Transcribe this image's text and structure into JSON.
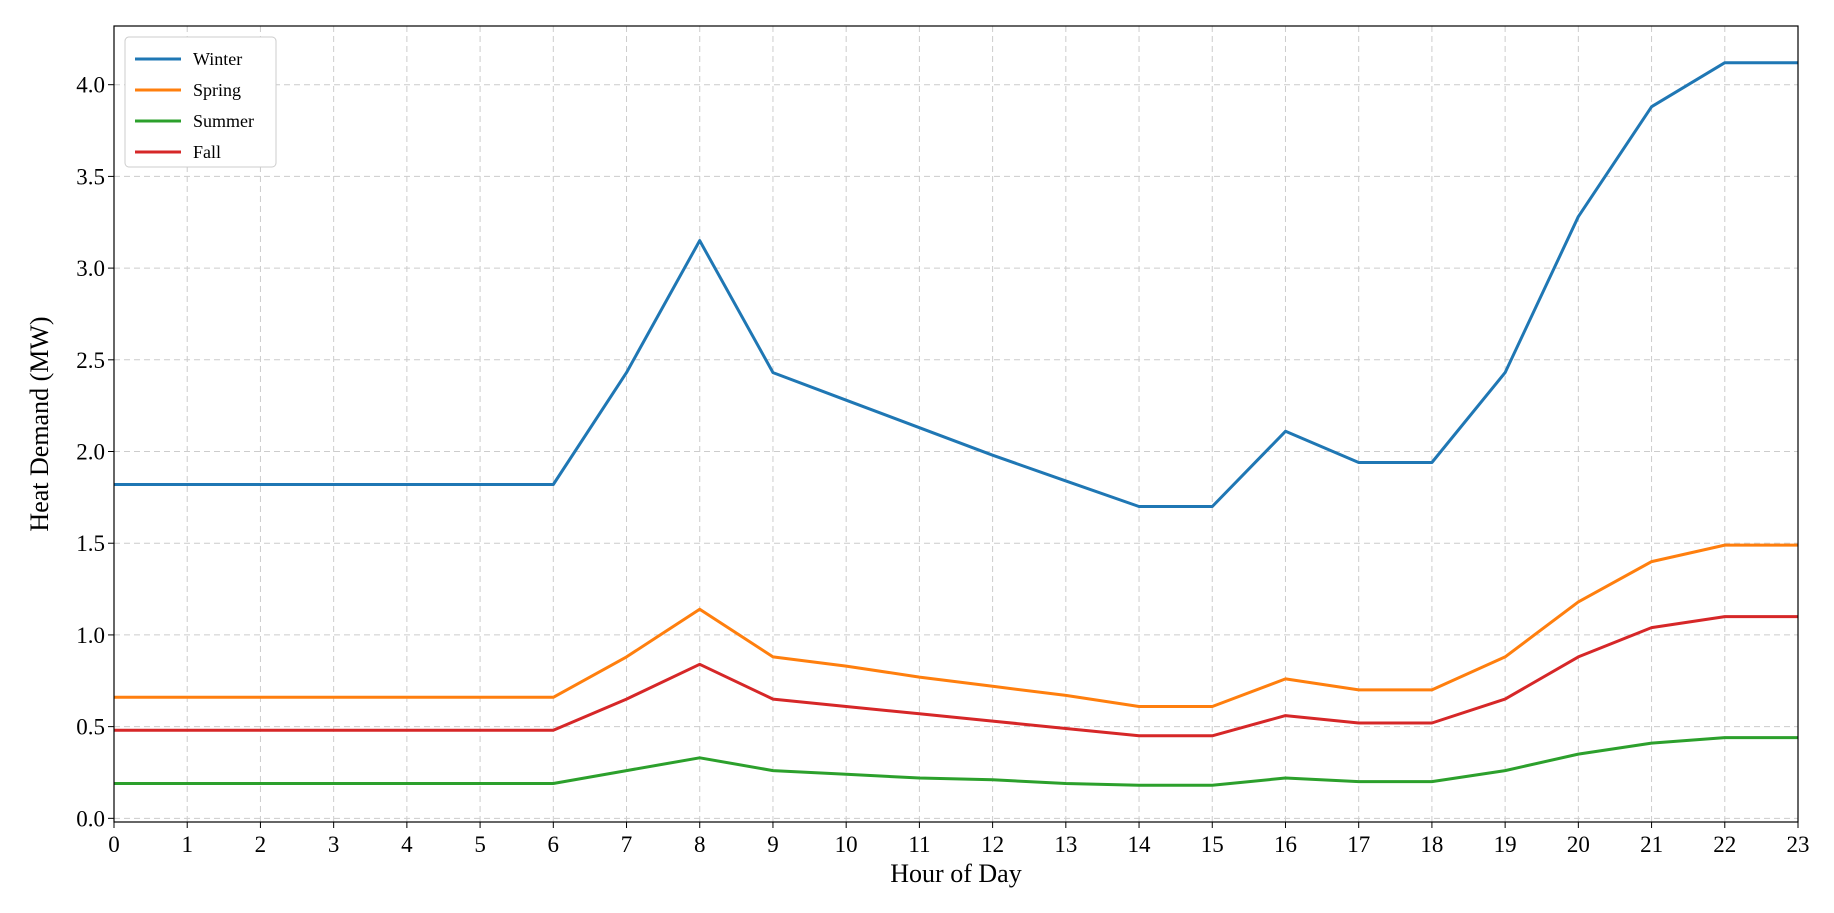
{
  "chart_data": {
    "type": "line",
    "xlabel": "Hour of Day",
    "ylabel": "Heat Demand (MW)",
    "x": [
      0,
      1,
      2,
      3,
      4,
      5,
      6,
      7,
      8,
      9,
      10,
      11,
      12,
      13,
      14,
      15,
      16,
      17,
      18,
      19,
      20,
      21,
      22,
      23
    ],
    "series": [
      {
        "name": "Winter",
        "color": "#1f77b4",
        "values": [
          1.82,
          1.82,
          1.82,
          1.82,
          1.82,
          1.82,
          1.82,
          2.43,
          3.15,
          2.43,
          2.28,
          2.13,
          1.98,
          1.84,
          1.7,
          1.7,
          2.11,
          1.94,
          1.94,
          2.43,
          3.28,
          3.88,
          4.12,
          4.12
        ]
      },
      {
        "name": "Spring",
        "color": "#ff7f0e",
        "values": [
          0.66,
          0.66,
          0.66,
          0.66,
          0.66,
          0.66,
          0.66,
          0.88,
          1.14,
          0.88,
          0.83,
          0.77,
          0.72,
          0.67,
          0.61,
          0.61,
          0.76,
          0.7,
          0.7,
          0.88,
          1.18,
          1.4,
          1.49,
          1.49
        ]
      },
      {
        "name": "Summer",
        "color": "#2ca02c",
        "values": [
          0.19,
          0.19,
          0.19,
          0.19,
          0.19,
          0.19,
          0.19,
          0.26,
          0.33,
          0.26,
          0.24,
          0.22,
          0.21,
          0.19,
          0.18,
          0.18,
          0.22,
          0.2,
          0.2,
          0.26,
          0.35,
          0.41,
          0.44,
          0.44
        ]
      },
      {
        "name": "Fall",
        "color": "#d62728",
        "values": [
          0.48,
          0.48,
          0.48,
          0.48,
          0.48,
          0.48,
          0.48,
          0.65,
          0.84,
          0.65,
          0.61,
          0.57,
          0.53,
          0.49,
          0.45,
          0.45,
          0.56,
          0.52,
          0.52,
          0.65,
          0.88,
          1.04,
          1.1,
          1.1
        ]
      }
    ],
    "xlim": [
      0,
      23
    ],
    "ylim": [
      -0.02,
      4.32
    ],
    "xticks": [
      0,
      1,
      2,
      3,
      4,
      5,
      6,
      7,
      8,
      9,
      10,
      11,
      12,
      13,
      14,
      15,
      16,
      17,
      18,
      19,
      20,
      21,
      22,
      23
    ],
    "yticks": [
      {
        "value": 0,
        "label": "0.0"
      },
      0.5,
      {
        "value": 1,
        "label": "1.0"
      },
      1.5,
      {
        "value": 2,
        "label": "2.0"
      },
      2.5,
      {
        "value": 3,
        "label": "3.0"
      },
      3.5,
      {
        "value": 4,
        "label": "4.0"
      }
    ],
    "grid": true,
    "legend": "upper left"
  }
}
